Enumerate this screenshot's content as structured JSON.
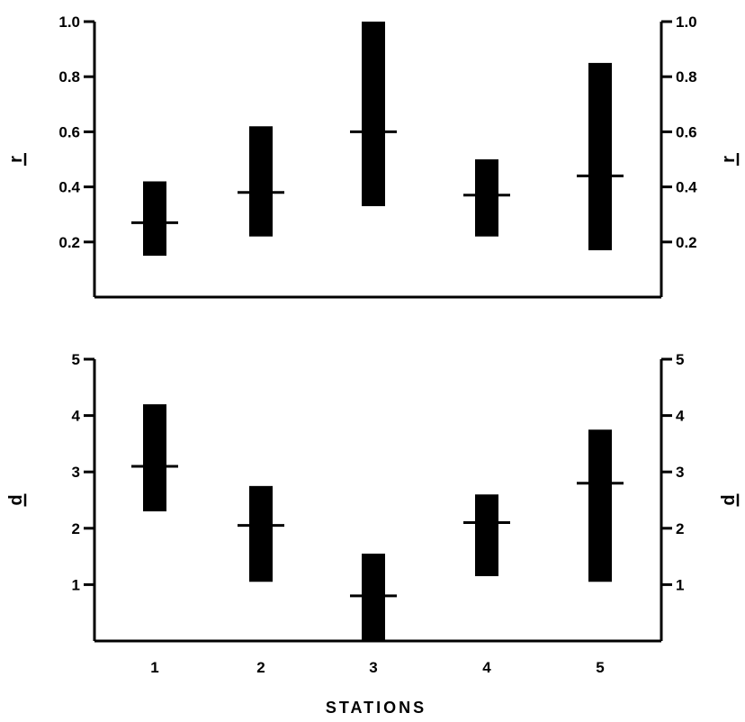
{
  "colors": {
    "ink": "#000000",
    "background": "#ffffff"
  },
  "x_axis_title": "STATIONS",
  "chart_data": [
    {
      "type": "range-bar",
      "ylabel": "r",
      "ylim": [
        0,
        1.0
      ],
      "yticks": [
        0.2,
        0.4,
        0.6,
        0.8,
        1.0
      ],
      "ytick_labels": [
        "0.2",
        "0.4",
        "0.6",
        "0.8",
        "1.0"
      ],
      "categories": [
        "1",
        "2",
        "3",
        "4",
        "5"
      ],
      "low": [
        0.15,
        0.22,
        0.33,
        0.22,
        0.17
      ],
      "high": [
        0.42,
        0.62,
        1.0,
        0.5,
        0.85
      ],
      "mean": [
        0.27,
        0.38,
        0.6,
        0.37,
        0.44
      ],
      "grid": false,
      "right_axis": true
    },
    {
      "type": "range-bar",
      "ylabel": "d",
      "ylim": [
        0,
        5
      ],
      "yticks": [
        1,
        2,
        3,
        4,
        5
      ],
      "ytick_labels": [
        "1",
        "2",
        "3",
        "4",
        "5"
      ],
      "categories": [
        "1",
        "2",
        "3",
        "4",
        "5"
      ],
      "low": [
        2.3,
        1.05,
        0.0,
        1.15,
        1.05
      ],
      "high": [
        4.2,
        2.75,
        1.55,
        2.6,
        3.75
      ],
      "mean": [
        3.1,
        2.05,
        0.8,
        2.1,
        2.8
      ],
      "grid": false,
      "right_axis": true
    }
  ]
}
